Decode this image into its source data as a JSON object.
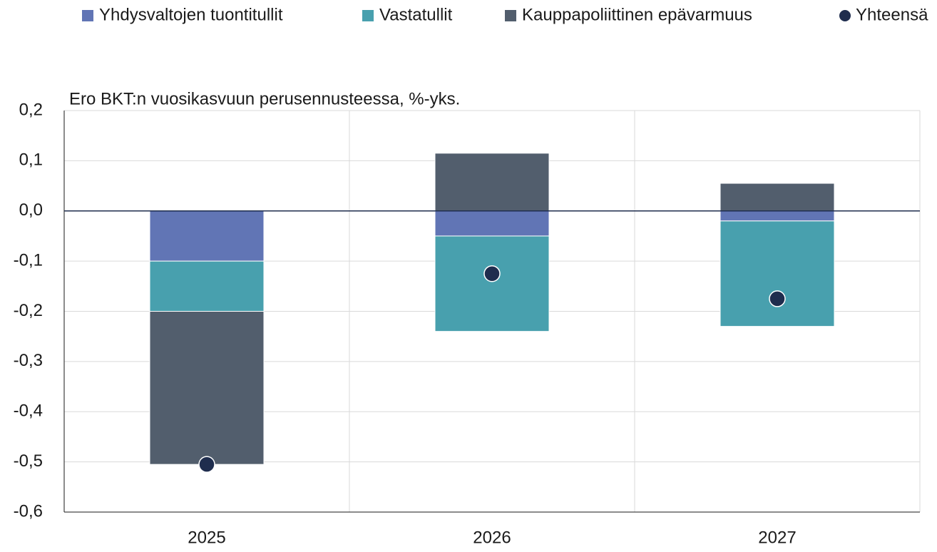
{
  "chart_data": {
    "type": "stacked_bar",
    "subtitle": "Ero BKT:n vuosikasvuun perusennusteessa, %-yks.",
    "categories": [
      "2025",
      "2026",
      "2027"
    ],
    "series": [
      {
        "name": "Yhdysvaltojen tuontitullit",
        "color": "#6175b5",
        "values": [
          -0.1,
          -0.05,
          -0.02
        ]
      },
      {
        "name": "Vastatullit",
        "color": "#48a0ae",
        "values": [
          -0.1,
          -0.19,
          -0.21
        ]
      },
      {
        "name": "Kauppapoliittinen epävarmuus",
        "color": "#525e6d",
        "values": [
          -0.305,
          0.115,
          0.055
        ]
      },
      {
        "name": "Yhteensä",
        "color": "#1f2d4e",
        "type": "scatter",
        "values": [
          -0.505,
          -0.125,
          -0.175
        ]
      }
    ],
    "ylim": [
      -0.6,
      0.2
    ],
    "yticks": [
      {
        "value": 0.2,
        "label": "0,2"
      },
      {
        "value": 0.1,
        "label": "0,1"
      },
      {
        "value": 0,
        "label": "0,0"
      },
      {
        "value": -0.1,
        "label": "-0,1"
      },
      {
        "value": -0.2,
        "label": "-0,2"
      },
      {
        "value": -0.3,
        "label": "-0,3"
      },
      {
        "value": -0.4,
        "label": "-0,4"
      },
      {
        "value": -0.5,
        "label": "-0,5"
      },
      {
        "value": -0.6,
        "label": "-0,6"
      }
    ],
    "grid": true,
    "legend": "top"
  }
}
